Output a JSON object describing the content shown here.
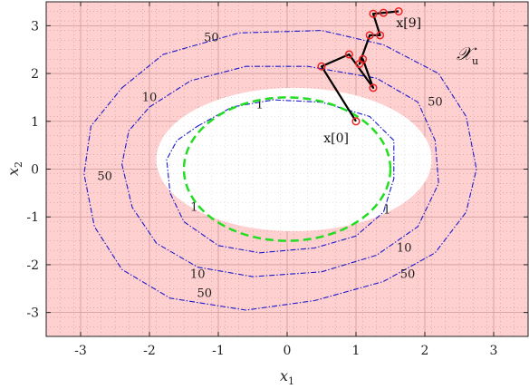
{
  "chart_data": {
    "type": "contour",
    "xlabel": "x",
    "xlabel_sub": "1",
    "ylabel": "x",
    "ylabel_sub": "2",
    "xlim": [
      -3.5,
      3.5
    ],
    "ylim": [
      -3.5,
      3.5
    ],
    "xticks": [
      -3,
      -2,
      -1,
      0,
      1,
      2,
      3
    ],
    "yticks": [
      -3,
      -2,
      -1,
      0,
      1,
      2,
      3
    ],
    "xtick_labels": [
      "-3",
      "-2",
      "-1",
      "0",
      "1",
      "2",
      "3"
    ],
    "ytick_labels": [
      "-3",
      "-2",
      "-1",
      "0",
      "1",
      "2",
      "3"
    ],
    "grid": true,
    "unsafe_region_label": "𝒳",
    "unsafe_region_sub": "u",
    "colors": {
      "unsafe_fill": "#ffd0d0",
      "safe_fill": "#ffffff",
      "contours": "#1a1acc",
      "invariant_set": "#22dd22",
      "trajectory": "#000000",
      "markers": "#ee2222"
    },
    "safe_ellipse": {
      "center": [
        0.1,
        0.2
      ],
      "rx": 2.0,
      "ry": 1.5
    },
    "invariant_ellipse": {
      "center": [
        0.0,
        0.0
      ],
      "rx": 1.5,
      "ry": 1.5
    },
    "contours": [
      {
        "label": "1",
        "points": [
          [
            -1.3,
            0.9
          ],
          [
            -0.8,
            1.3
          ],
          [
            -0.2,
            1.45
          ],
          [
            0.5,
            1.4
          ],
          [
            1.2,
            1.1
          ],
          [
            1.55,
            0.6
          ],
          [
            1.55,
            -0.2
          ],
          [
            1.4,
            -0.9
          ],
          [
            1.0,
            -1.4
          ],
          [
            0.4,
            -1.65
          ],
          [
            -0.4,
            -1.75
          ],
          [
            -1.0,
            -1.6
          ],
          [
            -1.5,
            -1.1
          ],
          [
            -1.7,
            -0.5
          ],
          [
            -1.75,
            0.2
          ],
          [
            -1.6,
            0.6
          ],
          [
            -1.3,
            0.9
          ]
        ],
        "label_positions": [
          [
            -0.4,
            1.35
          ],
          [
            1.45,
            -0.85
          ],
          [
            -1.35,
            -0.8
          ]
        ]
      },
      {
        "label": "10",
        "points": [
          [
            -2.0,
            1.3
          ],
          [
            -1.4,
            1.85
          ],
          [
            -0.6,
            2.15
          ],
          [
            0.3,
            2.15
          ],
          [
            1.3,
            1.9
          ],
          [
            1.9,
            1.4
          ],
          [
            2.15,
            0.6
          ],
          [
            2.2,
            -0.3
          ],
          [
            1.9,
            -1.2
          ],
          [
            1.3,
            -1.8
          ],
          [
            0.5,
            -2.15
          ],
          [
            -0.5,
            -2.25
          ],
          [
            -1.3,
            -2.05
          ],
          [
            -1.9,
            -1.55
          ],
          [
            -2.25,
            -0.8
          ],
          [
            -2.4,
            0.1
          ],
          [
            -2.3,
            0.8
          ],
          [
            -2.0,
            1.3
          ]
        ],
        "label_positions": [
          [
            -2.0,
            1.5
          ],
          [
            1.7,
            -1.65
          ],
          [
            -1.3,
            -2.2
          ]
        ]
      },
      {
        "label": "50",
        "points": [
          [
            -2.4,
            1.7
          ],
          [
            -1.8,
            2.4
          ],
          [
            -0.7,
            2.85
          ],
          [
            0.5,
            2.9
          ],
          [
            1.4,
            2.6
          ],
          [
            2.2,
            2.0
          ],
          [
            2.6,
            1.1
          ],
          [
            2.75,
            0.0
          ],
          [
            2.6,
            -0.9
          ],
          [
            2.15,
            -1.75
          ],
          [
            1.4,
            -2.35
          ],
          [
            0.4,
            -2.75
          ],
          [
            -0.6,
            -2.95
          ],
          [
            -1.7,
            -2.7
          ],
          [
            -2.4,
            -2.1
          ],
          [
            -2.8,
            -1.2
          ],
          [
            -2.95,
            -0.1
          ],
          [
            -2.85,
            0.9
          ],
          [
            -2.4,
            1.7
          ]
        ],
        "label_positions": [
          [
            -1.1,
            2.75
          ],
          [
            2.15,
            1.4
          ],
          [
            -2.65,
            -0.15
          ],
          [
            -1.2,
            -2.6
          ],
          [
            1.75,
            -2.2
          ]
        ]
      }
    ],
    "trajectory": {
      "x": [
        1.0,
        0.5,
        0.9,
        1.25,
        1.1,
        1.05,
        1.2,
        1.35,
        1.25,
        1.4,
        1.62
      ],
      "y": [
        1.0,
        2.15,
        2.4,
        1.7,
        2.3,
        2.2,
        2.8,
        2.8,
        3.25,
        3.27,
        3.3
      ],
      "start_label": "x[0]",
      "end_label": "x[9]",
      "start_index": 0,
      "end_index": 9
    }
  }
}
